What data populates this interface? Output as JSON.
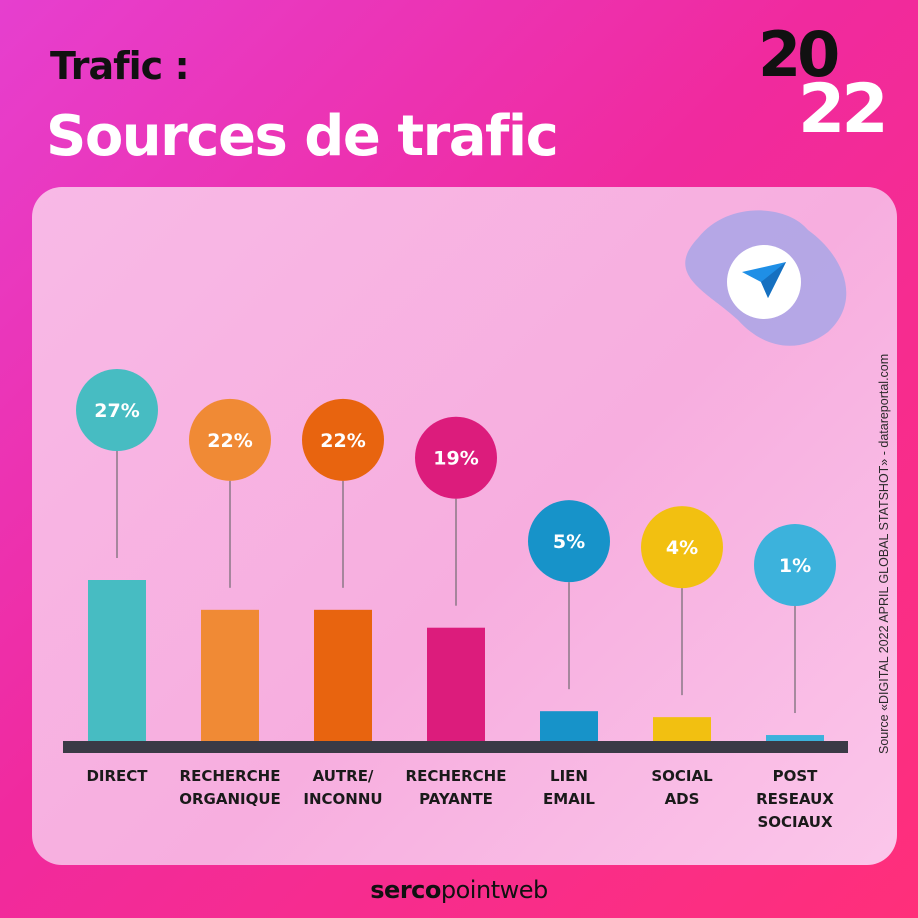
{
  "header": {
    "kicker": "Trafic :",
    "title": "Sources de trafic",
    "year_top": "20",
    "year_bottom": "22"
  },
  "source_note": "Source «DIGITAL 2022 APRIL GLOBAL STATSHOT» - datareportal.com",
  "footer": {
    "brand_bold": "serco",
    "brand_light": "pointweb"
  },
  "badge": {
    "icon": "paper-plane-icon",
    "icon_color": "#1f8fe6"
  },
  "colors": {
    "axis": "#3a3a46",
    "connector": "#7a6f78",
    "label_text": "#ffffff"
  },
  "chart_data": {
    "type": "bar",
    "categories": [
      "DIRECT",
      "RECHERCHE\nORGANIQUE",
      "AUTRE/\nINCONNU",
      "RECHERCHE\nPAYANTE",
      "LIEN\nEMAIL",
      "SOCIAL\nADS",
      "POST\nRESEAUX\nSOCIAUX"
    ],
    "values": [
      27,
      22,
      22,
      19,
      5,
      4,
      1
    ],
    "data_labels": [
      "27%",
      "22%",
      "22%",
      "19%",
      "5%",
      "4%",
      "1%"
    ],
    "colors": [
      "#47bcc2",
      "#f08a35",
      "#e8640f",
      "#dc1c7c",
      "#1793c9",
      "#f2c011",
      "#3cb2dc"
    ],
    "unit": "%",
    "ylim": [
      0,
      30
    ],
    "grid": false,
    "legend": "none"
  }
}
